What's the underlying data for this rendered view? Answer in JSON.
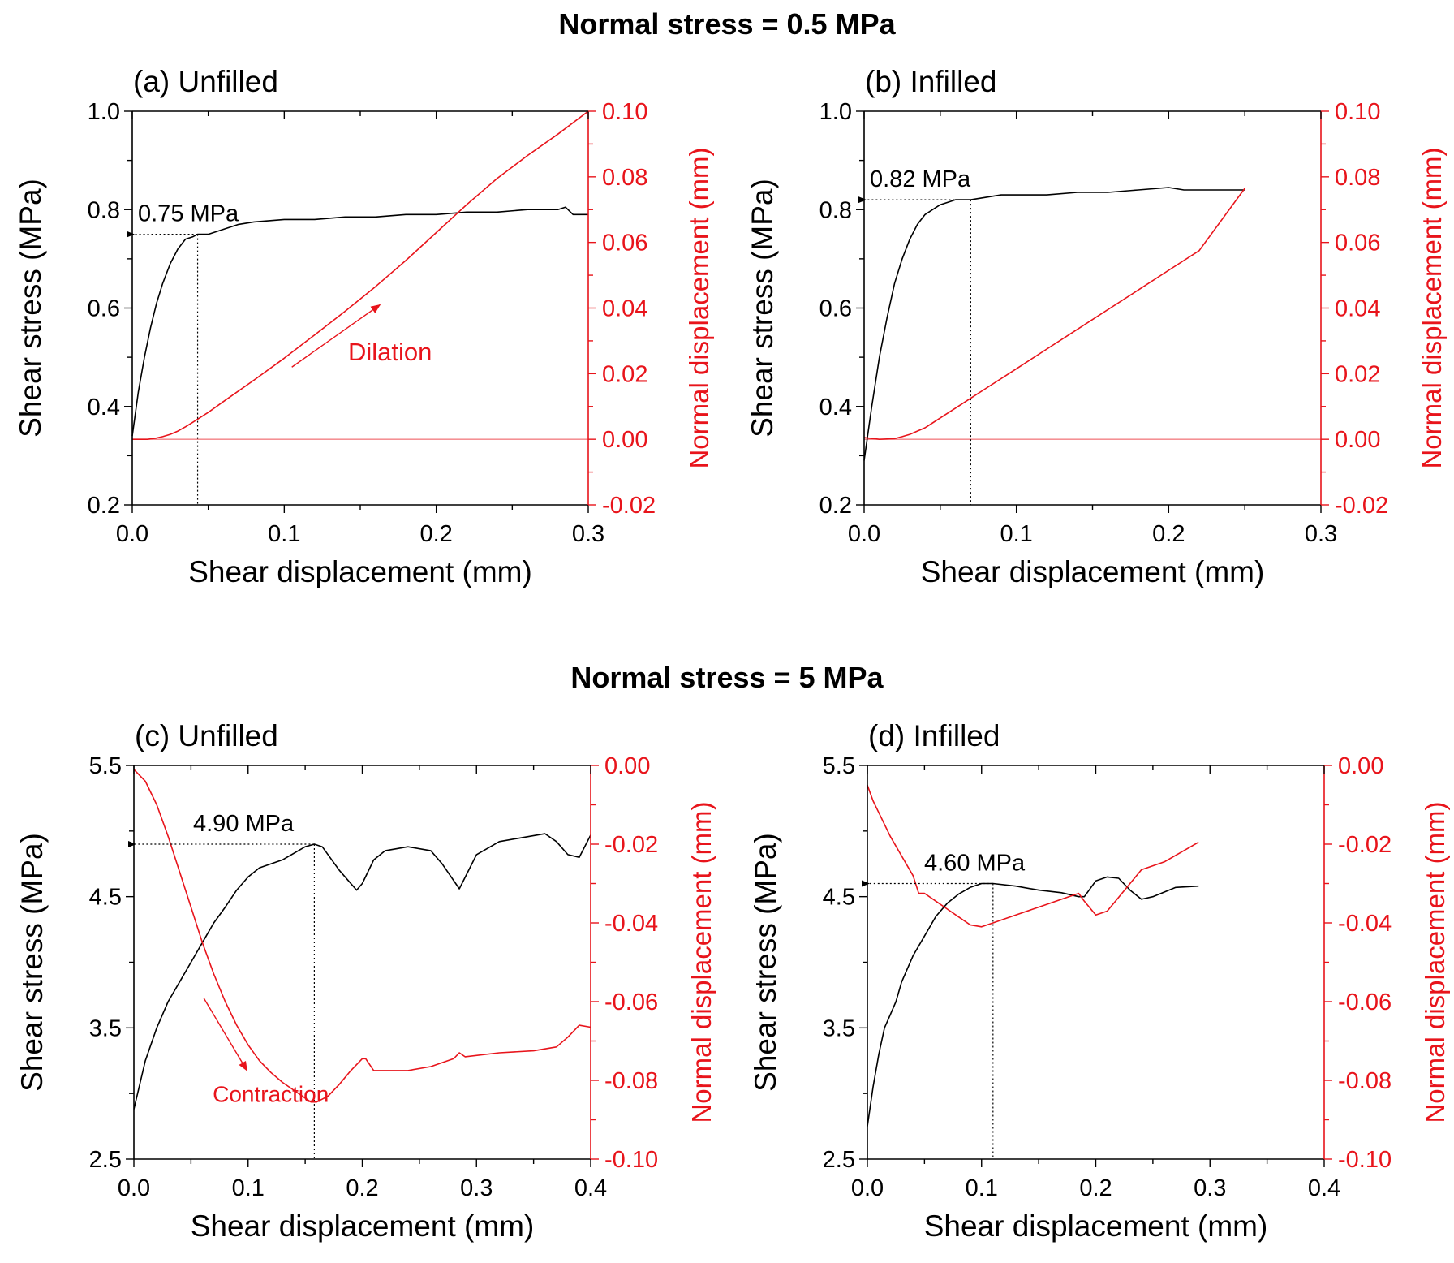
{
  "section_titles": [
    "Normal stress = 0.5 MPa",
    "Normal stress = 5 MPa"
  ],
  "colors": {
    "shear": "#000000",
    "normal": "#e8141b",
    "guide": "#000000"
  },
  "chart_data": [
    {
      "panel": "(a) Unfilled",
      "type": "line",
      "section": 0,
      "xlabel": "Shear displacement (mm)",
      "ylabel_left": "Shear stress (MPa)",
      "ylabel_right": "Normal displacement (mm)",
      "xlim": [
        0,
        0.3
      ],
      "xticks": [
        0,
        0.1,
        0.2,
        0.3
      ],
      "xtick_labels": [
        "0.0",
        "0.1",
        "0.2",
        "0.3"
      ],
      "ylim_left": [
        0.2,
        1.0
      ],
      "yticks_left": [
        0.2,
        0.4,
        0.6,
        0.8,
        1.0
      ],
      "ytick_labels_left": [
        "0.2",
        "0.4",
        "0.6",
        "0.8",
        "1.0"
      ],
      "ylim_right": [
        -0.02,
        0.1
      ],
      "yticks_right": [
        -0.02,
        0,
        0.02,
        0.04,
        0.06,
        0.08,
        0.1
      ],
      "ytick_labels_right": [
        "-0.02",
        "0.00",
        "0.02",
        "0.04",
        "0.06",
        "0.08",
        "0.10"
      ],
      "zero_line_right": 0,
      "series": [
        {
          "name": "Shear stress",
          "axis": "left",
          "x": [
            0,
            0.004,
            0.008,
            0.012,
            0.016,
            0.02,
            0.025,
            0.03,
            0.035,
            0.04,
            0.043,
            0.05,
            0.06,
            0.07,
            0.08,
            0.1,
            0.12,
            0.14,
            0.16,
            0.18,
            0.2,
            0.22,
            0.24,
            0.26,
            0.28,
            0.285,
            0.29,
            0.3
          ],
          "y": [
            0.34,
            0.43,
            0.5,
            0.56,
            0.61,
            0.65,
            0.69,
            0.72,
            0.74,
            0.745,
            0.75,
            0.75,
            0.76,
            0.77,
            0.775,
            0.78,
            0.78,
            0.785,
            0.785,
            0.79,
            0.79,
            0.795,
            0.795,
            0.8,
            0.8,
            0.805,
            0.79,
            0.79
          ]
        },
        {
          "name": "Normal displacement",
          "axis": "right",
          "x": [
            0,
            0.005,
            0.01,
            0.015,
            0.02,
            0.025,
            0.03,
            0.035,
            0.04,
            0.05,
            0.06,
            0.08,
            0.1,
            0.12,
            0.14,
            0.16,
            0.18,
            0.2,
            0.22,
            0.24,
            0.26,
            0.28,
            0.3
          ],
          "y": [
            0,
            0,
            0,
            0.0003,
            0.0008,
            0.0015,
            0.0025,
            0.0038,
            0.0052,
            0.0082,
            0.0115,
            0.018,
            0.0247,
            0.0318,
            0.039,
            0.0465,
            0.0545,
            0.063,
            0.0715,
            0.0795,
            0.0865,
            0.093,
            0.1
          ]
        }
      ],
      "peak": {
        "label": "0.75 MPa",
        "x": 0.043,
        "y": 0.75
      },
      "annotation": {
        "text": "Dilation",
        "arrow_from": [
          0.105,
          0.022
        ],
        "arrow_to": [
          0.163,
          0.041
        ],
        "text_at": [
          0.142,
          0.024
        ]
      }
    },
    {
      "panel": "(b) Infilled",
      "type": "line",
      "section": 0,
      "xlabel": "Shear displacement (mm)",
      "ylabel_left": "Shear stress (MPa)",
      "ylabel_right": "Normal displacement (mm)",
      "xlim": [
        0,
        0.3
      ],
      "xticks": [
        0,
        0.1,
        0.2,
        0.3
      ],
      "xtick_labels": [
        "0.0",
        "0.1",
        "0.2",
        "0.3"
      ],
      "ylim_left": [
        0.2,
        1.0
      ],
      "yticks_left": [
        0.2,
        0.4,
        0.6,
        0.8,
        1.0
      ],
      "ytick_labels_left": [
        "0.2",
        "0.4",
        "0.6",
        "0.8",
        "1.0"
      ],
      "ylim_right": [
        -0.02,
        0.1
      ],
      "yticks_right": [
        -0.02,
        0,
        0.02,
        0.04,
        0.06,
        0.08,
        0.1
      ],
      "ytick_labels_right": [
        "-0.02",
        "0.00",
        "0.02",
        "0.04",
        "0.06",
        "0.08",
        "0.10"
      ],
      "zero_line_right": 0,
      "series": [
        {
          "name": "Shear stress",
          "axis": "left",
          "x": [
            0,
            0.005,
            0.01,
            0.015,
            0.02,
            0.025,
            0.03,
            0.035,
            0.04,
            0.045,
            0.05,
            0.055,
            0.06,
            0.07,
            0.08,
            0.09,
            0.1,
            0.12,
            0.14,
            0.16,
            0.18,
            0.2,
            0.21,
            0.22,
            0.24,
            0.25
          ],
          "y": [
            0.29,
            0.4,
            0.5,
            0.58,
            0.65,
            0.7,
            0.74,
            0.77,
            0.79,
            0.8,
            0.81,
            0.815,
            0.82,
            0.82,
            0.825,
            0.83,
            0.83,
            0.83,
            0.835,
            0.835,
            0.84,
            0.845,
            0.84,
            0.84,
            0.84,
            0.84
          ]
        },
        {
          "name": "Normal displacement",
          "axis": "right",
          "x": [
            0,
            0.01,
            0.02,
            0.025,
            0.03,
            0.04,
            0.05,
            0.06,
            0.07,
            0.08,
            0.1,
            0.12,
            0.14,
            0.16,
            0.18,
            0.2,
            0.22,
            0.25
          ],
          "y": [
            0.0005,
            0,
            0.0002,
            0.0008,
            0.0015,
            0.0035,
            0.0065,
            0.0095,
            0.0125,
            0.0155,
            0.0215,
            0.0275,
            0.0335,
            0.0395,
            0.0455,
            0.0515,
            0.0575,
            0.0765
          ]
        }
      ],
      "peak": {
        "label": "0.82 MPa",
        "x": 0.07,
        "y": 0.82
      }
    },
    {
      "panel": "(c) Unfilled",
      "type": "line",
      "section": 1,
      "xlabel": "Shear displacement (mm)",
      "ylabel_left": "Shear stress (MPa)",
      "ylabel_right": "Normal displacement (mm)",
      "xlim": [
        0,
        0.4
      ],
      "xticks": [
        0,
        0.1,
        0.2,
        0.3,
        0.4
      ],
      "xtick_labels": [
        "0.0",
        "0.1",
        "0.2",
        "0.3",
        "0.4"
      ],
      "ylim_left": [
        2.5,
        5.5
      ],
      "yticks_left": [
        2.5,
        3.5,
        4.5,
        5.5
      ],
      "ytick_labels_left": [
        "2.5",
        "3.5",
        "4.5",
        "5.5"
      ],
      "ylim_right": [
        -0.1,
        0
      ],
      "yticks_right": [
        -0.1,
        -0.08,
        -0.06,
        -0.04,
        -0.02,
        0
      ],
      "ytick_labels_right": [
        "-0.10",
        "-0.08",
        "-0.06",
        "-0.04",
        "-0.02",
        "0.00"
      ],
      "series": [
        {
          "name": "Shear stress",
          "axis": "left",
          "x": [
            0,
            0.01,
            0.02,
            0.03,
            0.04,
            0.05,
            0.06,
            0.07,
            0.08,
            0.09,
            0.1,
            0.11,
            0.12,
            0.13,
            0.14,
            0.15,
            0.158,
            0.165,
            0.18,
            0.195,
            0.2,
            0.21,
            0.22,
            0.24,
            0.26,
            0.27,
            0.285,
            0.3,
            0.32,
            0.34,
            0.36,
            0.37,
            0.38,
            0.39,
            0.4
          ],
          "y": [
            2.88,
            3.25,
            3.5,
            3.7,
            3.85,
            4.0,
            4.15,
            4.3,
            4.42,
            4.55,
            4.65,
            4.72,
            4.75,
            4.78,
            4.83,
            4.88,
            4.9,
            4.88,
            4.7,
            4.55,
            4.6,
            4.78,
            4.85,
            4.88,
            4.85,
            4.75,
            4.56,
            4.82,
            4.92,
            4.95,
            4.98,
            4.92,
            4.82,
            4.8,
            4.97
          ]
        },
        {
          "name": "Normal displacement",
          "axis": "right",
          "x": [
            0,
            0.01,
            0.02,
            0.03,
            0.04,
            0.05,
            0.06,
            0.07,
            0.08,
            0.09,
            0.1,
            0.11,
            0.12,
            0.13,
            0.14,
            0.15,
            0.155,
            0.16,
            0.17,
            0.18,
            0.19,
            0.2,
            0.203,
            0.21,
            0.24,
            0.26,
            0.28,
            0.285,
            0.29,
            0.32,
            0.35,
            0.37,
            0.38,
            0.39,
            0.4
          ],
          "y": [
            -0.001,
            -0.004,
            -0.01,
            -0.018,
            -0.027,
            -0.036,
            -0.045,
            -0.053,
            -0.06,
            -0.066,
            -0.071,
            -0.075,
            -0.078,
            -0.0805,
            -0.0825,
            -0.0845,
            -0.0855,
            -0.0855,
            -0.084,
            -0.081,
            -0.0775,
            -0.0745,
            -0.0745,
            -0.0775,
            -0.0775,
            -0.0765,
            -0.0745,
            -0.073,
            -0.074,
            -0.073,
            -0.0725,
            -0.0715,
            -0.069,
            -0.066,
            -0.0665
          ]
        }
      ],
      "peak": {
        "label": "4.90 MPa",
        "x": 0.158,
        "y": 4.9
      },
      "annotation": {
        "text": "Contraction",
        "arrow_from": [
          0.061,
          -0.059
        ],
        "arrow_to": [
          0.099,
          -0.0775
        ],
        "text_at": [
          0.069,
          -0.0855
        ]
      }
    },
    {
      "panel": "(d) Infilled",
      "type": "line",
      "section": 1,
      "xlabel": "Shear displacement (mm)",
      "ylabel_left": "Shear stress (MPa)",
      "ylabel_right": "Normal displacement (mm)",
      "xlim": [
        0,
        0.4
      ],
      "xticks": [
        0,
        0.1,
        0.2,
        0.3,
        0.4
      ],
      "xtick_labels": [
        "0.0",
        "0.1",
        "0.2",
        "0.3",
        "0.4"
      ],
      "ylim_left": [
        2.5,
        5.5
      ],
      "yticks_left": [
        2.5,
        3.5,
        4.5,
        5.5
      ],
      "ytick_labels_left": [
        "2.5",
        "3.5",
        "4.5",
        "5.5"
      ],
      "ylim_right": [
        -0.1,
        0
      ],
      "yticks_right": [
        -0.1,
        -0.08,
        -0.06,
        -0.04,
        -0.02,
        0
      ],
      "ytick_labels_right": [
        "-0.10",
        "-0.08",
        "-0.06",
        "-0.04",
        "-0.02",
        "0.00"
      ],
      "series": [
        {
          "name": "Shear stress",
          "axis": "left",
          "x": [
            0,
            0.005,
            0.01,
            0.015,
            0.02,
            0.025,
            0.03,
            0.04,
            0.05,
            0.06,
            0.07,
            0.08,
            0.09,
            0.1,
            0.11,
            0.13,
            0.15,
            0.17,
            0.185,
            0.19,
            0.2,
            0.21,
            0.22,
            0.23,
            0.24,
            0.25,
            0.27,
            0.29
          ],
          "y": [
            2.75,
            3.05,
            3.3,
            3.5,
            3.6,
            3.7,
            3.85,
            4.05,
            4.2,
            4.35,
            4.45,
            4.52,
            4.57,
            4.6,
            4.6,
            4.58,
            4.55,
            4.53,
            4.5,
            4.5,
            4.62,
            4.65,
            4.64,
            4.55,
            4.48,
            4.5,
            4.57,
            4.58
          ]
        },
        {
          "name": "Normal displacement",
          "axis": "right",
          "x": [
            0,
            0.005,
            0.01,
            0.02,
            0.03,
            0.04,
            0.045,
            0.05,
            0.06,
            0.07,
            0.08,
            0.09,
            0.1,
            0.11,
            0.13,
            0.15,
            0.17,
            0.185,
            0.19,
            0.2,
            0.21,
            0.22,
            0.24,
            0.26,
            0.29
          ],
          "y": [
            -0.005,
            -0.009,
            -0.012,
            -0.018,
            -0.023,
            -0.028,
            -0.0325,
            -0.0325,
            -0.0345,
            -0.0365,
            -0.0385,
            -0.0405,
            -0.041,
            -0.04,
            -0.038,
            -0.036,
            -0.034,
            -0.0325,
            -0.0345,
            -0.038,
            -0.037,
            -0.0335,
            -0.0265,
            -0.0245,
            -0.0195
          ]
        }
      ],
      "peak": {
        "label": "4.60 MPa",
        "x": 0.11,
        "y": 4.6
      }
    }
  ]
}
